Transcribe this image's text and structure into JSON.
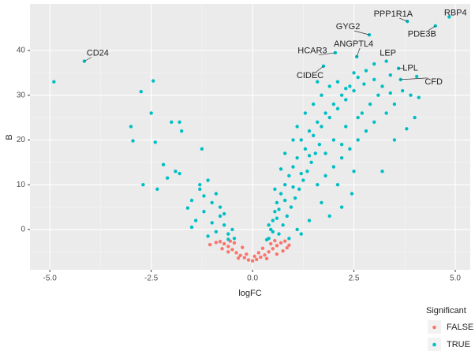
{
  "chart_data": {
    "type": "scatter",
    "x_label": "logFC",
    "y_label": "B",
    "xlim": [
      -5.49,
      5.37
    ],
    "ylim": [
      -9,
      50.4
    ],
    "xticks": [
      {
        "value": -5,
        "label": "-5.0"
      },
      {
        "value": -2.5,
        "label": "-2.5"
      },
      {
        "value": 0,
        "label": "0.0"
      },
      {
        "value": 2.5,
        "label": "2.5"
      },
      {
        "value": 5,
        "label": "5.0"
      }
    ],
    "yticks": [
      0,
      10,
      20,
      30,
      40
    ],
    "grid": true,
    "legend_title": "Significant",
    "legend_position": "bottom-right",
    "series": [
      {
        "name": "FALSE",
        "color": "#F8766D",
        "x": [
          0,
          -0.1,
          0.1,
          -0.2,
          0.2,
          -0.3,
          0.3,
          -0.4,
          0.4,
          -0.5,
          0.5,
          -0.6,
          0.6,
          -0.7,
          0.7,
          -0.8,
          0.8,
          -0.25,
          0.25,
          -0.45,
          0.45,
          0.9,
          -0.9,
          0.6,
          -0.6,
          0.75,
          -0.75,
          0.15,
          -0.15,
          0.35,
          -0.35,
          0.55,
          -0.55,
          0.05,
          -1.05,
          0.85
        ],
        "y": [
          -7,
          -6.8,
          -6.7,
          -6.3,
          -6.2,
          -5.8,
          -5.7,
          -5.2,
          -5,
          -4.5,
          -4.3,
          -3.8,
          -3.6,
          -3.2,
          -3,
          -2.7,
          -2.6,
          -4,
          -4.2,
          -3,
          -3.2,
          -3.5,
          -2.9,
          -5.5,
          -5,
          -4.8,
          -4.3,
          -5.2,
          -5.5,
          -6.5,
          -6.4,
          -2.5,
          -2.6,
          -6,
          -3.4,
          -4.1
        ]
      },
      {
        "name": "TRUE",
        "color": "#00BFC4",
        "x": [
          -4.9,
          -4.15,
          -2.45,
          -2.75,
          -2.5,
          -3.0,
          -2.95,
          -2.0,
          -1.8,
          -2.4,
          -1.25,
          -1.75,
          -2.2,
          -2.7,
          -1.9,
          -1.8,
          -2.1,
          -1.1,
          -1.3,
          -0.9,
          -1.0,
          -1.5,
          -1.2,
          -0.8,
          -0.7,
          -0.6,
          -1.4,
          -1.0,
          -0.5,
          -0.9,
          -1.6,
          -1.1,
          -0.45,
          -0.8,
          -1.2,
          -2.35,
          -0.6,
          -1.5,
          -0.7,
          -1.3,
          0.4,
          0.45,
          0.5,
          0.55,
          0.6,
          0.7,
          0.8,
          0.9,
          1.0,
          1.1,
          0.65,
          0.75,
          0.85,
          0.95,
          1.05,
          1.15,
          1.25,
          1.35,
          1.45,
          1.55,
          1.65,
          1.2,
          1.4,
          1.6,
          1.8,
          2.0,
          2.2,
          2.4,
          1.3,
          1.5,
          1.7,
          1.9,
          2.1,
          2.3,
          2.5,
          2.6,
          2.5,
          1.6,
          1.8,
          2.0,
          2.2,
          2.4,
          2.6,
          2.8,
          3.0,
          2.7,
          2.9,
          3.1,
          2.45,
          2.2,
          1.9,
          1.4,
          1.1,
          0.35,
          0.9,
          1.2,
          1.7,
          2.1,
          2.5,
          0.6,
          0.8,
          1.0,
          1.2,
          1.4,
          1.0,
          0.8,
          0.7,
          0.55,
          1.3,
          1.1,
          1.5,
          1.7,
          1.9,
          2.1,
          3.2,
          3.4,
          3.5,
          3.3,
          3.2,
          3.5,
          3.8,
          4.0,
          3.7,
          4.1,
          3.9,
          3.0,
          2.8,
          3.3,
          3.6,
          3.65,
          4.51,
          4.85,
          3.82,
          2.88,
          2.57,
          2.04,
          1.75,
          4.05,
          2.3,
          2.75,
          1.6,
          0.5,
          0.4,
          0.65,
          2.0,
          2.3,
          2.6,
          1.8,
          2.2,
          3.4,
          3.0
        ],
        "y": [
          33,
          37.6,
          33.2,
          30.8,
          26,
          23,
          19.8,
          24,
          24,
          19.5,
          18,
          22,
          14.5,
          10,
          13,
          12.5,
          11.5,
          11,
          9,
          8,
          6,
          6.5,
          4,
          3,
          1,
          -1,
          2,
          1.5,
          0,
          -0.5,
          4.8,
          -1.5,
          -2,
          5,
          7.5,
          9,
          -2.2,
          0.5,
          3.5,
          10,
          -2,
          0,
          2,
          4,
          6,
          8,
          10,
          12,
          14,
          16,
          -1,
          1,
          3,
          5,
          7,
          9,
          11,
          13,
          15,
          17,
          19,
          20,
          22,
          24,
          26,
          28,
          30,
          32,
          18,
          21,
          23,
          25,
          27,
          29,
          31,
          34,
          35,
          10,
          12,
          14,
          16,
          18,
          20,
          22,
          24,
          26,
          28,
          30,
          8,
          5,
          3,
          2,
          0,
          -2.3,
          -2,
          -1,
          6,
          10,
          13,
          2.5,
          6.5,
          9.5,
          12.5,
          16.5,
          20,
          17,
          13.5,
          9,
          26,
          23,
          28,
          30,
          32,
          33,
          32,
          30.5,
          28,
          26,
          13,
          20,
          22.5,
          25,
          31,
          29.5,
          30,
          37,
          35.5,
          37.6,
          36,
          33.5,
          45.5,
          47.5,
          46.5,
          43.5,
          38.6,
          39.5,
          36.5,
          34.2,
          31.5,
          32.5,
          33,
          -0.5,
          1,
          4.5,
          20,
          23,
          25,
          17,
          19,
          34.5,
          33.5
        ]
      }
    ],
    "annotations": [
      {
        "text": "RBP4",
        "x": 4.85,
        "y": 47.5
      },
      {
        "text": "PPP1R1A",
        "x": 3.82,
        "y": 46.5
      },
      {
        "text": "GYG2",
        "x": 2.88,
        "y": 43.5
      },
      {
        "text": "PDE3B",
        "x": 4.51,
        "y": 45.5
      },
      {
        "text": "ANGPTL4",
        "x": 2.57,
        "y": 38.6
      },
      {
        "text": "HCAR3",
        "x": 2.04,
        "y": 39.5
      },
      {
        "text": "LEP",
        "x": 3.3,
        "y": 37.6
      },
      {
        "text": "LPL",
        "x": 3.6,
        "y": 36
      },
      {
        "text": "CFD",
        "x": 3.65,
        "y": 33.5
      },
      {
        "text": "CIDEC",
        "x": 1.75,
        "y": 36.5
      },
      {
        "text": "CD24",
        "x": -4.15,
        "y": 37.6
      }
    ]
  }
}
